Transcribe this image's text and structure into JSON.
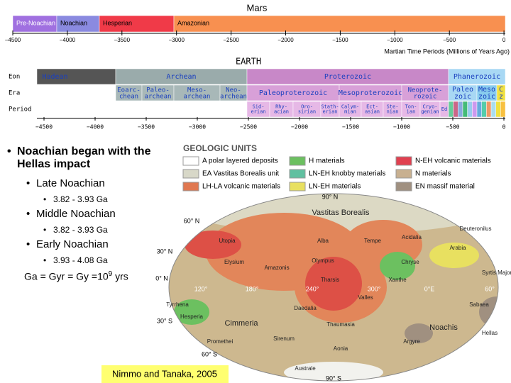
{
  "mars": {
    "title": "Mars",
    "periods": [
      "Pre-Noachian",
      "Noachian",
      "Hesperian",
      "Amazonian"
    ],
    "ticks": [
      "−4500",
      "−4000",
      "−3500",
      "−3000",
      "−2500",
      "−2000",
      "−1500",
      "−1000",
      "−500",
      "0"
    ],
    "axis_label": "Martian Time Periods (Millions of Years Ago)"
  },
  "earth": {
    "title": "EARTH",
    "row_labels": [
      "Eon",
      "Era",
      "Period"
    ],
    "eons": [
      "Hadean",
      "Archean",
      "Proterozoic",
      "Phanerozoic"
    ],
    "eras": [
      [
        "Eoarc-",
        "chean"
      ],
      [
        "Paleo-",
        "archean"
      ],
      [
        "Meso-",
        "archean"
      ],
      [
        "Neo-",
        "archean"
      ],
      [
        "Paleoproterozoic"
      ],
      [
        "Mesoproterozoic"
      ],
      [
        "Neoprote-",
        "rozoic"
      ],
      [
        "Paleo",
        "zoic"
      ],
      [
        "Meso",
        "zoic"
      ],
      [
        "C",
        "z"
      ]
    ],
    "periods": [
      [
        "Sid-",
        "erian"
      ],
      [
        "Rhy-",
        "acian"
      ],
      [
        "Oro-",
        "sirian"
      ],
      [
        "Stath-",
        "erian"
      ],
      [
        "Calym-",
        "mian"
      ],
      [
        "Ect-",
        "asian"
      ],
      [
        "Ste-",
        "nian"
      ],
      [
        "Ton-",
        "ian"
      ],
      [
        "Cryo-",
        "genian"
      ],
      [
        "Ed"
      ]
    ],
    "ticks": [
      "−4500",
      "−4000",
      "−3500",
      "−3000",
      "−2500",
      "−2000",
      "−1500",
      "−1000",
      "−500",
      "0"
    ]
  },
  "bullets": {
    "main": "Noachian began with the Hellas impact",
    "items": [
      {
        "label": "Late Noachian",
        "detail": "3.82 - 3.93 Ga"
      },
      {
        "label": "Middle Noachian",
        "detail": "3.82 - 3.93 Ga"
      },
      {
        "label": "Early Noachian",
        "detail": "3.93 - 4.08 Ga"
      }
    ],
    "units": {
      "base": "Ga = Gyr = Gy =10",
      "exponent": "9",
      "tail": " yrs"
    }
  },
  "legend": {
    "title": "GEOLOGIC UNITS",
    "items": [
      "A polar layered deposits",
      "EA Vastitas Borealis unit",
      "LH-LA volcanic materials",
      "H materials",
      "LN-EH knobby materials",
      "LN-EH materials",
      "N-EH volcanic materials",
      "N materials",
      "EN massif material"
    ]
  },
  "map": {
    "labels": [
      "Vastitas Borealis",
      "Utopia",
      "Alba",
      "Elysium",
      "Olympus",
      "Amazonis",
      "Tharsis",
      "Arabia",
      "Valles",
      "Tempe",
      "Acidalia",
      "Chryse",
      "Xanthe",
      "Deuteronilus",
      "Syrtis Major",
      "Hesperia",
      "Tyrrhena",
      "Cimmeria",
      "Daedalia",
      "Thaumasia",
      "Noachis",
      "Sabaea",
      "Sirenum",
      "Aonia",
      "Argyre",
      "Hellas",
      "Promethei",
      "Australe"
    ],
    "grid_labels": [
      "90° N",
      "60° N",
      "30° N",
      "0° N",
      "30° S",
      "60° S",
      "90° S",
      "120°",
      "180°",
      "240°",
      "300°",
      "0°E",
      "60°"
    ]
  },
  "citation": "Nimmo and Tanaka, 2005"
}
